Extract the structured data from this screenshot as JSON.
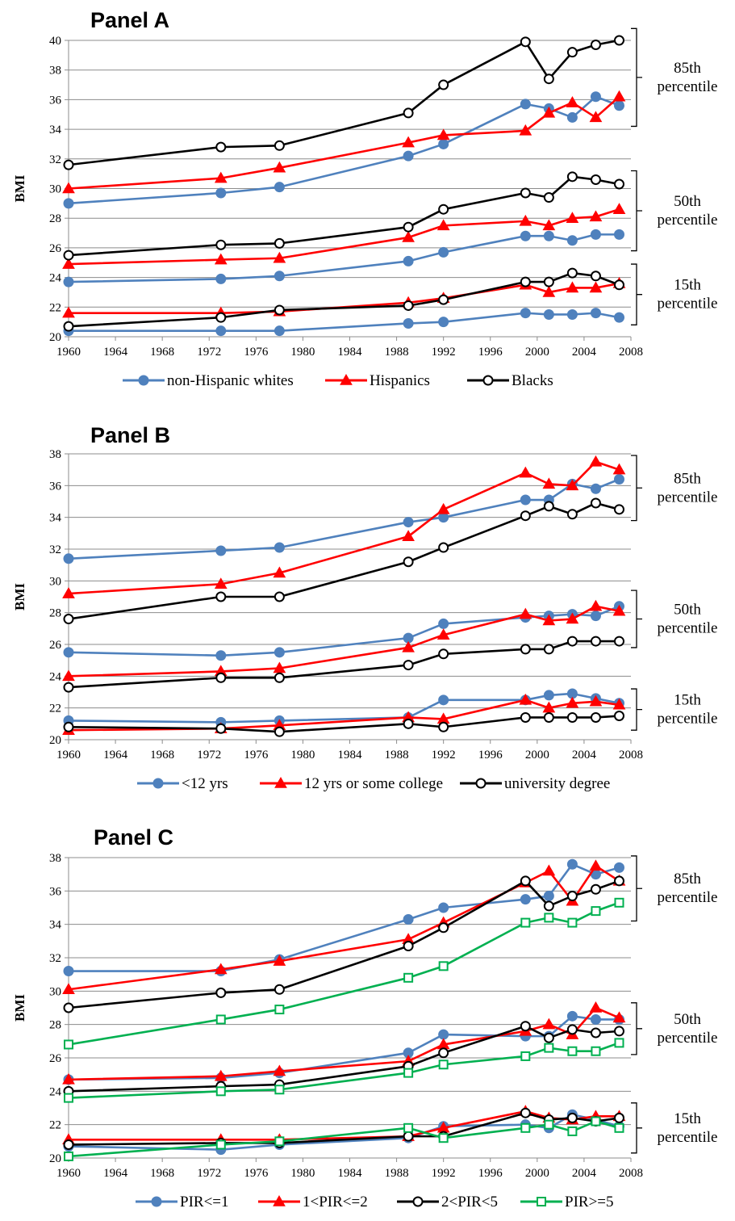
{
  "chart_data": [
    {
      "type": "line",
      "title": "Panel A",
      "ylabel": "BMI",
      "xlabel": "",
      "ylim": [
        20,
        40
      ],
      "yticks": [
        20,
        22,
        24,
        26,
        28,
        30,
        32,
        34,
        36,
        38,
        40
      ],
      "xlim": [
        1960,
        2008
      ],
      "xticks": [
        1960,
        1964,
        1968,
        1972,
        1976,
        1980,
        1984,
        1988,
        1992,
        1996,
        2000,
        2004,
        2008
      ],
      "grid": "horizontal",
      "legend_position": "bottom",
      "x": [
        1960,
        1973,
        1978,
        1989,
        1992,
        1999,
        2001,
        2003,
        2005,
        2007
      ],
      "series": [
        {
          "name": "non-Hispanic whites",
          "color": "#4f81bd",
          "marker": "filled-circle",
          "values": {
            "p85": [
              29.0,
              29.7,
              30.1,
              32.2,
              33.0,
              35.7,
              35.4,
              34.8,
              36.2,
              35.6
            ],
            "p50": [
              23.7,
              23.9,
              24.1,
              25.1,
              25.7,
              26.8,
              26.8,
              26.5,
              26.9,
              26.9
            ],
            "p15": [
              20.4,
              20.4,
              20.4,
              20.9,
              21.0,
              21.6,
              21.5,
              21.5,
              21.6,
              21.3
            ]
          }
        },
        {
          "name": "Hispanics",
          "color": "#ff0000",
          "marker": "filled-triangle",
          "values": {
            "p85": [
              30.0,
              30.7,
              31.4,
              33.1,
              33.6,
              33.9,
              35.1,
              35.8,
              34.8,
              36.2
            ],
            "p50": [
              24.9,
              25.2,
              25.3,
              26.7,
              27.5,
              27.8,
              27.5,
              28.0,
              28.1,
              28.6
            ],
            "p15": [
              21.6,
              21.6,
              21.7,
              22.3,
              22.6,
              23.5,
              23.0,
              23.3,
              23.3,
              23.6
            ]
          }
        },
        {
          "name": "Blacks",
          "color": "#000000",
          "marker": "open-circle",
          "values": {
            "p85": [
              31.6,
              32.8,
              32.9,
              35.1,
              37.0,
              39.9,
              37.4,
              39.2,
              39.7,
              40.0
            ],
            "p50": [
              25.5,
              26.2,
              26.3,
              27.4,
              28.6,
              29.7,
              29.4,
              30.8,
              30.6,
              30.3
            ],
            "p15": [
              20.7,
              21.3,
              21.8,
              22.1,
              22.5,
              23.7,
              23.7,
              24.3,
              24.1,
              23.5
            ]
          }
        }
      ],
      "brackets": [
        {
          "line1": "85th",
          "line2": "percentile",
          "y_from": 34.2,
          "y_to": 40.8
        },
        {
          "line1": "50th",
          "line2": "percentile",
          "y_from": 25.8,
          "y_to": 31.2
        },
        {
          "line1": "15th",
          "line2": "percentile",
          "y_from": 20.8,
          "y_to": 24.9
        }
      ]
    },
    {
      "type": "line",
      "title": "Panel B",
      "ylabel": "BMI",
      "xlabel": "",
      "ylim": [
        20,
        38
      ],
      "yticks": [
        20,
        22,
        24,
        26,
        28,
        30,
        32,
        34,
        36,
        38
      ],
      "xlim": [
        1960,
        2008
      ],
      "xticks": [
        1960,
        1964,
        1968,
        1972,
        1976,
        1980,
        1984,
        1988,
        1992,
        1996,
        2000,
        2004,
        2008
      ],
      "grid": "horizontal",
      "legend_position": "bottom",
      "x": [
        1960,
        1973,
        1978,
        1989,
        1992,
        1999,
        2001,
        2003,
        2005,
        2007
      ],
      "series": [
        {
          "name": "<12 yrs",
          "color": "#4f81bd",
          "marker": "filled-circle",
          "values": {
            "p85": [
              31.4,
              31.9,
              32.1,
              33.7,
              34.0,
              35.1,
              35.1,
              36.1,
              35.8,
              36.4
            ],
            "p50": [
              25.5,
              25.3,
              25.5,
              26.4,
              27.3,
              27.7,
              27.8,
              27.9,
              27.8,
              28.4
            ],
            "p15": [
              21.2,
              21.1,
              21.2,
              21.4,
              22.5,
              22.5,
              22.8,
              22.9,
              22.6,
              22.3
            ]
          }
        },
        {
          "name": "12 yrs or some college",
          "color": "#ff0000",
          "marker": "filled-triangle",
          "values": {
            "p85": [
              29.2,
              29.8,
              30.5,
              32.8,
              34.5,
              36.8,
              36.1,
              36.0,
              37.5,
              37.0
            ],
            "p50": [
              24.0,
              24.3,
              24.5,
              25.8,
              26.6,
              27.9,
              27.5,
              27.6,
              28.4,
              28.1
            ],
            "p15": [
              20.6,
              20.7,
              20.9,
              21.4,
              21.3,
              22.5,
              22.0,
              22.3,
              22.4,
              22.2
            ]
          }
        },
        {
          "name": "university degree",
          "color": "#000000",
          "marker": "open-circle",
          "values": {
            "p85": [
              27.6,
              29.0,
              29.0,
              31.2,
              32.1,
              34.1,
              34.7,
              34.2,
              34.9,
              34.5
            ],
            "p50": [
              23.3,
              23.9,
              23.9,
              24.7,
              25.4,
              25.7,
              25.7,
              26.2,
              26.2,
              26.2
            ],
            "p15": [
              20.8,
              20.7,
              20.5,
              21.0,
              20.8,
              21.4,
              21.4,
              21.4,
              21.4,
              21.5
            ]
          }
        }
      ],
      "brackets": [
        {
          "line1": "85th",
          "line2": "percentile",
          "y_from": 33.8,
          "y_to": 37.9
        },
        {
          "line1": "50th",
          "line2": "percentile",
          "y_from": 25.8,
          "y_to": 29.4
        },
        {
          "line1": "15th",
          "line2": "percentile",
          "y_from": 20.6,
          "y_to": 23.2
        }
      ]
    },
    {
      "type": "line",
      "title": "Panel C",
      "ylabel": "BMI",
      "xlabel": "",
      "ylim": [
        20,
        38
      ],
      "yticks": [
        20,
        22,
        24,
        26,
        28,
        30,
        32,
        34,
        36,
        38
      ],
      "xlim": [
        1960,
        2008
      ],
      "xticks": [
        1960,
        1964,
        1968,
        1972,
        1976,
        1980,
        1984,
        1988,
        1992,
        1996,
        2000,
        2004,
        2008
      ],
      "grid": "horizontal",
      "legend_position": "bottom",
      "x": [
        1960,
        1973,
        1978,
        1989,
        1992,
        1999,
        2001,
        2003,
        2005,
        2007
      ],
      "series": [
        {
          "name": "PIR<=1",
          "color": "#4f81bd",
          "marker": "filled-circle",
          "values": {
            "p85": [
              31.2,
              31.2,
              31.9,
              34.3,
              35.0,
              35.5,
              35.7,
              37.6,
              37.0,
              37.4
            ],
            "p50": [
              24.7,
              24.8,
              25.1,
              26.3,
              27.4,
              27.3,
              27.3,
              28.5,
              28.3,
              28.3
            ],
            "p15": [
              20.7,
              20.5,
              20.8,
              21.2,
              21.9,
              22.0,
              21.8,
              22.6,
              22.3,
              21.9
            ]
          }
        },
        {
          "name": "1<PIR<=2",
          "color": "#ff0000",
          "marker": "filled-triangle",
          "values": {
            "p85": [
              30.1,
              31.3,
              31.8,
              33.1,
              34.1,
              36.5,
              37.2,
              35.4,
              37.5,
              36.6
            ],
            "p50": [
              24.7,
              24.9,
              25.2,
              25.8,
              26.8,
              27.6,
              28.0,
              27.4,
              29.0,
              28.4
            ],
            "p15": [
              21.1,
              21.1,
              21.1,
              21.3,
              21.8,
              22.8,
              22.4,
              22.3,
              22.5,
              22.5
            ]
          }
        },
        {
          "name": "2<PIR<5",
          "color": "#000000",
          "marker": "open-circle",
          "values": {
            "p85": [
              29.0,
              29.9,
              30.1,
              32.7,
              33.8,
              36.6,
              35.1,
              35.7,
              36.1,
              36.6
            ],
            "p50": [
              24.0,
              24.3,
              24.4,
              25.5,
              26.3,
              27.9,
              27.2,
              27.7,
              27.5,
              27.6
            ],
            "p15": [
              20.8,
              20.9,
              20.9,
              21.3,
              21.3,
              22.7,
              22.3,
              22.4,
              22.2,
              22.4
            ]
          }
        },
        {
          "name": "PIR>=5",
          "color": "#00b050",
          "marker": "open-square",
          "values": {
            "p85": [
              26.8,
              28.3,
              28.9,
              30.8,
              31.5,
              34.1,
              34.4,
              34.1,
              34.8,
              35.3
            ],
            "p50": [
              23.6,
              24.0,
              24.1,
              25.1,
              25.6,
              26.1,
              26.6,
              26.4,
              26.4,
              26.9
            ],
            "p15": [
              20.1,
              20.8,
              21.0,
              21.8,
              21.2,
              21.8,
              22.0,
              21.6,
              22.2,
              21.8
            ]
          }
        }
      ],
      "brackets": [
        {
          "line1": "85th",
          "line2": "percentile",
          "y_from": 34.2,
          "y_to": 38.1
        },
        {
          "line1": "50th",
          "line2": "percentile",
          "y_from": 26.2,
          "y_to": 29.3
        },
        {
          "line1": "15th",
          "line2": "percentile",
          "y_from": 20.3,
          "y_to": 23.3
        }
      ]
    }
  ]
}
